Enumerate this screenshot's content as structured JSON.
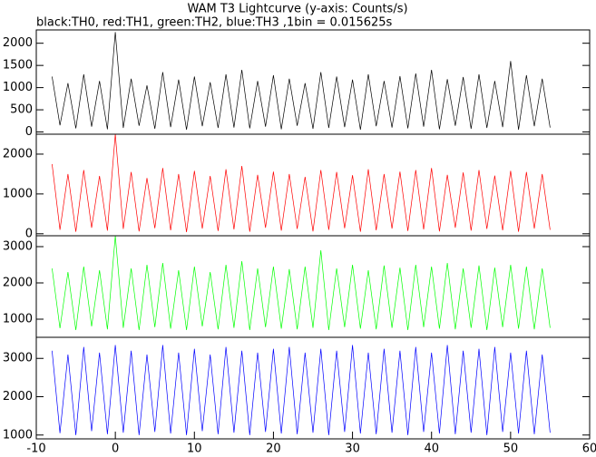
{
  "chart_data": [
    {
      "type": "line",
      "title": "WAM T3 Lightcurve (y-axis: Counts/s)",
      "subtitle": "black:TH0, red:TH1, green:TH2, blue:TH3 ,1bin = 0.015625s",
      "x": [
        -8,
        -7,
        -6,
        -5,
        -4,
        -3,
        -2,
        -1,
        0,
        1,
        2,
        3,
        4,
        5,
        6,
        7,
        8,
        9,
        10,
        11,
        12,
        13,
        14,
        15,
        16,
        17,
        18,
        19,
        20,
        21,
        22,
        23,
        24,
        25,
        26,
        27,
        28,
        29,
        30,
        31,
        32,
        33,
        34,
        35,
        36,
        37,
        38,
        39,
        40,
        41,
        42,
        43,
        44,
        45,
        46,
        47,
        48,
        49,
        50,
        51,
        52,
        53,
        54,
        55
      ],
      "xlim": [
        -10,
        60
      ],
      "ylim": [
        -50,
        2300
      ],
      "yticks": [
        0,
        500,
        1000,
        1500,
        2000
      ],
      "series": [
        {
          "color": "#000000",
          "values": [
            1250,
            150,
            1100,
            80,
            1300,
            120,
            1150,
            60,
            2250,
            90,
            1200,
            140,
            1050,
            70,
            1350,
            110,
            1180,
            50,
            1250,
            130,
            1120,
            90,
            1300,
            100,
            1400,
            80,
            1150,
            120,
            1280,
            60,
            1200,
            140,
            1100,
            70,
            1350,
            90,
            1250,
            110,
            1180,
            50,
            1300,
            130,
            1150,
            100,
            1260,
            80,
            1320,
            120,
            1400,
            60,
            1190,
            140,
            1240,
            70,
            1300,
            90,
            1150,
            110,
            1600,
            50,
            1280,
            130,
            1200,
            100
          ]
        }
      ]
    },
    {
      "type": "line",
      "x": [
        -8,
        -7,
        -6,
        -5,
        -4,
        -3,
        -2,
        -1,
        0,
        1,
        2,
        3,
        4,
        5,
        6,
        7,
        8,
        9,
        10,
        11,
        12,
        13,
        14,
        15,
        16,
        17,
        18,
        19,
        20,
        21,
        22,
        23,
        24,
        25,
        26,
        27,
        28,
        29,
        30,
        31,
        32,
        33,
        34,
        35,
        36,
        37,
        38,
        39,
        40,
        41,
        42,
        43,
        44,
        45,
        46,
        47,
        48,
        49,
        50,
        51,
        52,
        53,
        54,
        55
      ],
      "xlim": [
        -10,
        60
      ],
      "ylim": [
        -50,
        2500
      ],
      "yticks": [
        0,
        1000,
        2000
      ],
      "series": [
        {
          "color": "#ff0000",
          "values": [
            1750,
            100,
            1500,
            50,
            1600,
            150,
            1450,
            80,
            2500,
            120,
            1550,
            60,
            1400,
            140,
            1650,
            90,
            1500,
            40,
            1580,
            130,
            1450,
            70,
            1620,
            110,
            1700,
            50,
            1480,
            150,
            1560,
            80,
            1500,
            120,
            1430,
            60,
            1600,
            100,
            1550,
            140,
            1470,
            50,
            1620,
            90,
            1500,
            130,
            1560,
            70,
            1600,
            110,
            1650,
            60,
            1480,
            150,
            1540,
            80,
            1600,
            120,
            1460,
            90,
            1580,
            50,
            1550,
            130,
            1500,
            100
          ]
        }
      ]
    },
    {
      "type": "line",
      "x": [
        -8,
        -7,
        -6,
        -5,
        -4,
        -3,
        -2,
        -1,
        0,
        1,
        2,
        3,
        4,
        5,
        6,
        7,
        8,
        9,
        10,
        11,
        12,
        13,
        14,
        15,
        16,
        17,
        18,
        19,
        20,
        21,
        22,
        23,
        24,
        25,
        26,
        27,
        28,
        29,
        30,
        31,
        32,
        33,
        34,
        35,
        36,
        37,
        38,
        39,
        40,
        41,
        42,
        43,
        44,
        45,
        46,
        47,
        48,
        49,
        50,
        51,
        52,
        53,
        54,
        55
      ],
      "xlim": [
        -10,
        60
      ],
      "ylim": [
        500,
        3300
      ],
      "yticks": [
        1000,
        2000,
        3000
      ],
      "series": [
        {
          "color": "#00ff00",
          "values": [
            2400,
            750,
            2300,
            700,
            2450,
            800,
            2350,
            720,
            3300,
            760,
            2400,
            700,
            2500,
            780,
            2550,
            740,
            2350,
            700,
            2450,
            800,
            2300,
            720,
            2500,
            760,
            2600,
            700,
            2400,
            780,
            2450,
            740,
            2380,
            720,
            2450,
            760,
            2900,
            700,
            2400,
            780,
            2500,
            740,
            2350,
            720,
            2480,
            760,
            2420,
            700,
            2500,
            780,
            2450,
            740,
            2550,
            720,
            2400,
            760,
            2480,
            700,
            2420,
            780,
            2500,
            740,
            2450,
            720,
            2400,
            760
          ]
        }
      ]
    },
    {
      "type": "line",
      "x": [
        -8,
        -7,
        -6,
        -5,
        -4,
        -3,
        -2,
        -1,
        0,
        1,
        2,
        3,
        4,
        5,
        6,
        7,
        8,
        9,
        10,
        11,
        12,
        13,
        14,
        15,
        16,
        17,
        18,
        19,
        20,
        21,
        22,
        23,
        24,
        25,
        26,
        27,
        28,
        29,
        30,
        31,
        32,
        33,
        34,
        35,
        36,
        37,
        38,
        39,
        40,
        41,
        42,
        43,
        44,
        45,
        46,
        47,
        48,
        49,
        50,
        51,
        52,
        53,
        54,
        55
      ],
      "xlim": [
        -10,
        60
      ],
      "ylim": [
        900,
        3550
      ],
      "yticks": [
        1000,
        2000,
        3000
      ],
      "xticks": [
        -10,
        0,
        10,
        20,
        30,
        40,
        50,
        60
      ],
      "series": [
        {
          "color": "#0000ff",
          "values": [
            3200,
            1050,
            3100,
            1000,
            3300,
            1100,
            3150,
            1020,
            3350,
            1060,
            3200,
            1000,
            3100,
            1080,
            3350,
            1040,
            3150,
            1000,
            3250,
            1100,
            3100,
            1020,
            3300,
            1060,
            3200,
            1000,
            3150,
            1080,
            3250,
            1040,
            3300,
            1020,
            3150,
            1060,
            3250,
            1000,
            3200,
            1080,
            3350,
            1040,
            3150,
            1020,
            3250,
            1060,
            3200,
            1000,
            3300,
            1080,
            3150,
            1040,
            3350,
            1020,
            3200,
            1060,
            3250,
            1000,
            3300,
            1080,
            3150,
            1040,
            3200,
            1020,
            3100,
            1060
          ]
        }
      ]
    }
  ]
}
